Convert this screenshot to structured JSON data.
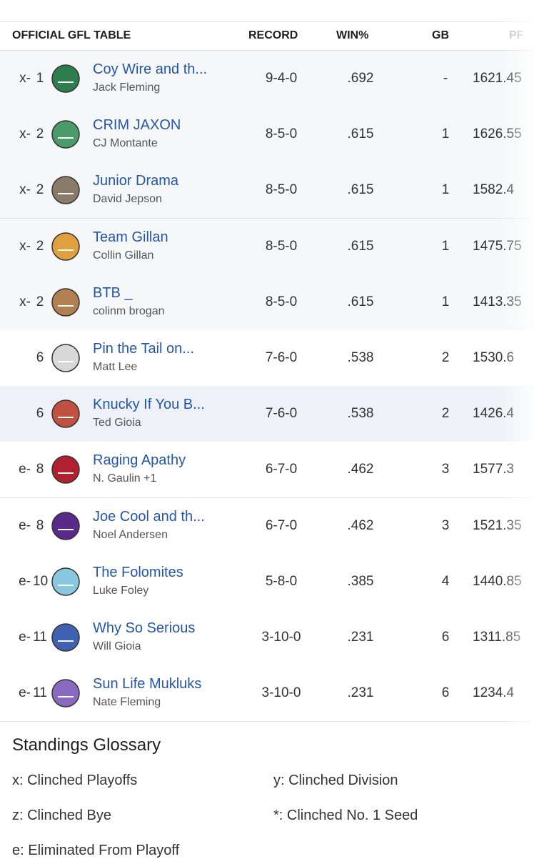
{
  "table": {
    "title": "OFFICIAL GFL TABLE",
    "columns": [
      "RECORD",
      "WIN%",
      "GB",
      "PF"
    ],
    "rows": [
      {
        "prefix": "x-",
        "rank": "1",
        "team": "Coy Wire and th...",
        "owner": "Jack Fleming",
        "record": "9-4-0",
        "win_pct": ".692",
        "gb": "-",
        "pf": "1621.45"
      },
      {
        "prefix": "x-",
        "rank": "2",
        "team": "CRIM JAXON",
        "owner": "CJ Montante",
        "record": "8-5-0",
        "win_pct": ".615",
        "gb": "1",
        "pf": "1626.55"
      },
      {
        "prefix": "x-",
        "rank": "2",
        "team": "Junior Drama",
        "owner": "David Jepson",
        "record": "8-5-0",
        "win_pct": ".615",
        "gb": "1",
        "pf": "1582.4"
      },
      {
        "prefix": "x-",
        "rank": "2",
        "team": "Team Gillan",
        "owner": "Collin Gillan",
        "record": "8-5-0",
        "win_pct": ".615",
        "gb": "1",
        "pf": "1475.75"
      },
      {
        "prefix": "x-",
        "rank": "2",
        "team": "BTB _",
        "owner": "colinm brogan",
        "record": "8-5-0",
        "win_pct": ".615",
        "gb": "1",
        "pf": "1413.35"
      },
      {
        "rank": "6",
        "team": "Pin the Tail on...",
        "owner": "Matt Lee",
        "record": "7-6-0",
        "win_pct": ".538",
        "gb": "2",
        "pf": "1530.6"
      },
      {
        "rank": "6",
        "team": "Knucky If You B...",
        "owner": "Ted Gioia",
        "record": "7-6-0",
        "win_pct": ".538",
        "gb": "2",
        "pf": "1426.4"
      },
      {
        "prefix": "e-",
        "rank": "8",
        "team": "Raging Apathy",
        "owner": "N. Gaulin +1",
        "record": "6-7-0",
        "win_pct": ".462",
        "gb": "3",
        "pf": "1577.3"
      },
      {
        "prefix": "e-",
        "rank": "8",
        "team": "Joe Cool and th...",
        "owner": "Noel Andersen",
        "record": "6-7-0",
        "win_pct": ".462",
        "gb": "3",
        "pf": "1521.35"
      },
      {
        "prefix": "e-",
        "rank": "10",
        "team": "The Folomites",
        "owner": "Luke Foley",
        "record": "5-8-0",
        "win_pct": ".385",
        "gb": "4",
        "pf": "1440.85"
      },
      {
        "prefix": "e-",
        "rank": "11",
        "team": "Why So Serious",
        "owner": "Will Gioia",
        "record": "3-10-0",
        "win_pct": ".231",
        "gb": "6",
        "pf": "1311.85"
      },
      {
        "prefix": "e-",
        "rank": "11",
        "team": "Sun Life Mukluks",
        "owner": "Nate Fleming",
        "record": "3-10-0",
        "win_pct": ".231",
        "gb": "6",
        "pf": "1234.4"
      }
    ]
  },
  "glossary": {
    "title": "Standings Glossary",
    "items": [
      "x: Clinched Playoffs",
      "y: Clinched Division",
      "z: Clinched Bye",
      "*: Clinched No. 1 Seed",
      "e: Eliminated From Playoff"
    ]
  }
}
